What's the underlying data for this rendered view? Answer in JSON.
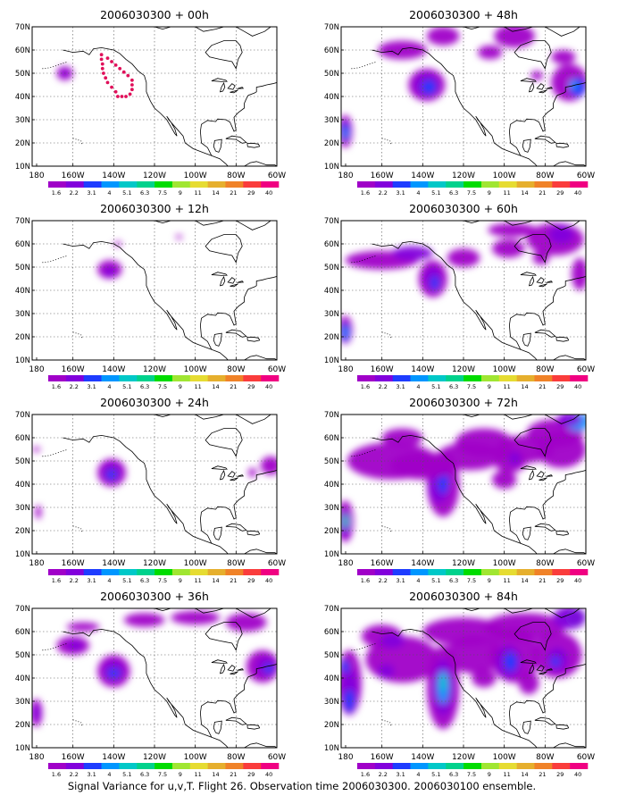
{
  "caption": "Signal Variance for u,v,T. Flight 26. Observation time 2006030300. 2006030100 ensemble.",
  "lat_ticks": [
    "10N",
    "20N",
    "30N",
    "40N",
    "50N",
    "60N",
    "70N"
  ],
  "lon_ticks": [
    "180",
    "160W",
    "140W",
    "120W",
    "100W",
    "80W",
    "60W"
  ],
  "colorbar": {
    "labels": [
      "1.6",
      "2.2",
      "3.1",
      "4",
      "5.1",
      "6.3",
      "7.5",
      "9",
      "11",
      "14",
      "21",
      "29",
      "40"
    ],
    "colors": [
      "#a000c8",
      "#8200dc",
      "#1e3cff",
      "#0096ff",
      "#00c8c8",
      "#00d28c",
      "#00dc00",
      "#a0e632",
      "#e6dc32",
      "#e6af2d",
      "#f08228",
      "#fa3c3c",
      "#f00082"
    ]
  },
  "panels": [
    {
      "title": "2006030300 + 00h"
    },
    {
      "title": "2006030300 + 48h"
    },
    {
      "title": "2006030300 + 12h"
    },
    {
      "title": "2006030300 + 60h"
    },
    {
      "title": "2006030300 + 24h"
    },
    {
      "title": "2006030300 + 72h"
    },
    {
      "title": "2006030300 + 36h"
    },
    {
      "title": "2006030300 + 84h"
    }
  ],
  "flight_track_color": "#e0105a"
}
